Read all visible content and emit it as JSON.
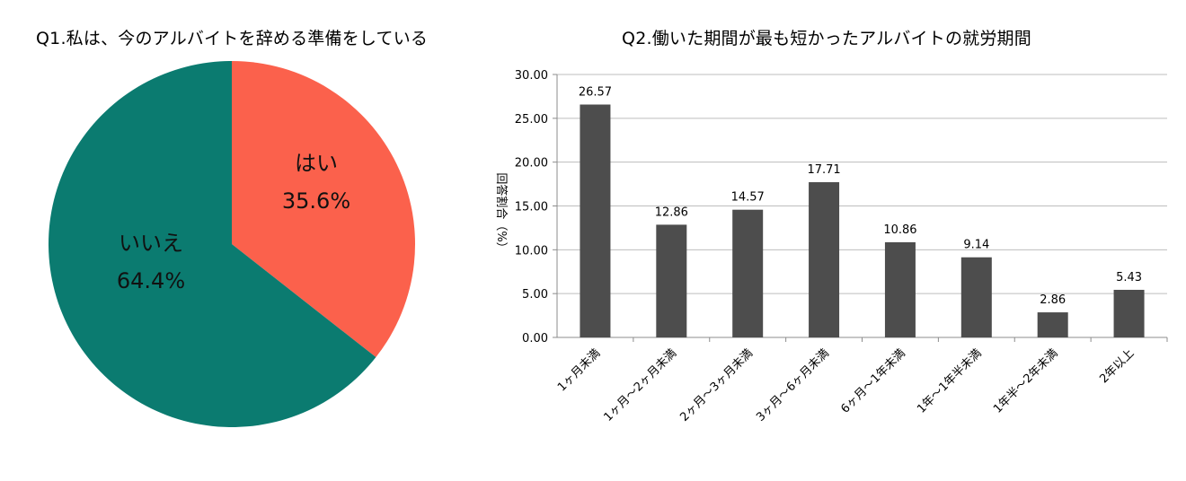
{
  "charts": [
    {
      "title": "Q1.私は、今のアルバイトを辞める準備をしている"
    },
    {
      "title": "Q2.働いた期間が最も短かったアルバイトの就労期間"
    }
  ],
  "colors": {
    "yes": "#fb614c",
    "no": "#0b7b70",
    "bar": "#4d4d4d",
    "grid": "#bdbdbd",
    "axis": "#8c8c8c"
  },
  "chart_data": [
    {
      "type": "pie",
      "title": "Q1.私は、今のアルバイトを辞める準備をしている",
      "slices": [
        {
          "label": "はい",
          "value": 35.6,
          "value_text": "35.6%",
          "color": "#fb614c"
        },
        {
          "label": "いいえ",
          "value": 64.4,
          "value_text": "64.4%",
          "color": "#0b7b70"
        }
      ]
    },
    {
      "type": "bar",
      "title": "Q2.働いた期間が最も短かったアルバイトの就労期間",
      "xlabel": "",
      "ylabel": "回答割合（%）",
      "ylim": [
        0,
        30
      ],
      "yticks": [
        "0.00",
        "5.00",
        "10.00",
        "15.00",
        "20.00",
        "25.00",
        "30.00"
      ],
      "grid": true,
      "categories": [
        "1ヶ月未満",
        "1ヶ月～2ヶ月未満",
        "2ヶ月～3ヶ月未満",
        "3ヶ月～6ヶ月未満",
        "6ヶ月～1年未満",
        "1年～1年半未満",
        "1年半～2年未満",
        "2年以上"
      ],
      "values": [
        26.57,
        12.86,
        14.57,
        17.71,
        10.86,
        9.14,
        2.86,
        5.43
      ],
      "value_labels": [
        "26.57",
        "12.86",
        "14.57",
        "17.71",
        "10.86",
        "9.14",
        "2.86",
        "5.43"
      ]
    }
  ]
}
